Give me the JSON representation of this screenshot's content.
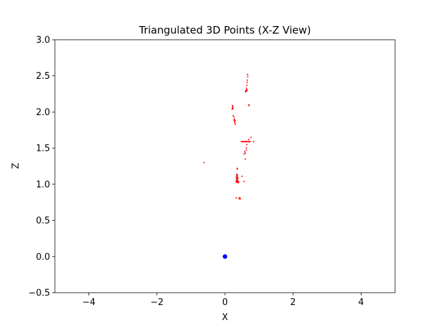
{
  "chart_data": {
    "type": "scatter",
    "title": "Triangulated 3D Points (X-Z View)",
    "xlabel": "X",
    "ylabel": "Z",
    "xlim": [
      -5,
      5
    ],
    "ylim": [
      -0.5,
      3.0
    ],
    "xticks": [
      -4,
      -2,
      0,
      2,
      4
    ],
    "xtick_labels": [
      "−4",
      "−2",
      "0",
      "2",
      "4"
    ],
    "yticks": [
      -0.5,
      0.0,
      0.5,
      1.0,
      1.5,
      2.0,
      2.5,
      3.0
    ],
    "ytick_labels": [
      "−0.5",
      "0.0",
      "0.5",
      "1.0",
      "1.5",
      "2.0",
      "2.5",
      "3.0"
    ],
    "grid": false,
    "series": [
      {
        "color": "#ff0000",
        "marker": "point",
        "points": [
          [
            -0.62,
            1.3
          ],
          [
            0.66,
            2.52
          ],
          [
            0.67,
            2.49
          ],
          [
            0.66,
            2.44
          ],
          [
            0.65,
            2.41
          ],
          [
            0.64,
            2.37
          ],
          [
            0.63,
            2.33
          ],
          [
            0.64,
            2.31
          ],
          [
            0.62,
            2.3
          ],
          [
            0.65,
            2.3
          ],
          [
            0.63,
            2.29
          ],
          [
            0.61,
            2.29
          ],
          [
            0.6,
            2.28
          ],
          [
            0.7,
            2.09
          ],
          [
            0.71,
            2.1
          ],
          [
            0.22,
            2.09
          ],
          [
            0.23,
            2.08
          ],
          [
            0.22,
            2.06
          ],
          [
            0.24,
            2.05
          ],
          [
            0.21,
            2.04
          ],
          [
            0.24,
            1.95
          ],
          [
            0.27,
            1.93
          ],
          [
            0.28,
            1.9
          ],
          [
            0.26,
            1.89
          ],
          [
            0.3,
            1.88
          ],
          [
            0.28,
            1.87
          ],
          [
            0.29,
            1.85
          ],
          [
            0.3,
            1.83
          ],
          [
            0.77,
            1.65
          ],
          [
            0.7,
            1.62
          ],
          [
            0.48,
            1.59
          ],
          [
            0.5,
            1.59
          ],
          [
            0.52,
            1.59
          ],
          [
            0.54,
            1.59
          ],
          [
            0.56,
            1.59
          ],
          [
            0.58,
            1.59
          ],
          [
            0.6,
            1.59
          ],
          [
            0.62,
            1.59
          ],
          [
            0.64,
            1.59
          ],
          [
            0.66,
            1.59
          ],
          [
            0.68,
            1.59
          ],
          [
            0.7,
            1.59
          ],
          [
            0.72,
            1.59
          ],
          [
            0.74,
            1.59
          ],
          [
            0.84,
            1.59
          ],
          [
            0.64,
            1.55
          ],
          [
            0.63,
            1.5
          ],
          [
            0.62,
            1.47
          ],
          [
            0.58,
            1.45
          ],
          [
            0.6,
            1.43
          ],
          [
            0.56,
            1.42
          ],
          [
            0.6,
            1.35
          ],
          [
            0.36,
            1.22
          ],
          [
            0.36,
            1.21
          ],
          [
            0.34,
            1.14
          ],
          [
            0.36,
            1.13
          ],
          [
            0.35,
            1.12
          ],
          [
            0.37,
            1.11
          ],
          [
            0.5,
            1.11
          ],
          [
            0.33,
            1.1
          ],
          [
            0.36,
            1.09
          ],
          [
            0.34,
            1.08
          ],
          [
            0.38,
            1.08
          ],
          [
            0.35,
            1.07
          ],
          [
            0.37,
            1.06
          ],
          [
            0.33,
            1.05
          ],
          [
            0.36,
            1.05
          ],
          [
            0.39,
            1.04
          ],
          [
            0.34,
            1.04
          ],
          [
            0.37,
            1.04
          ],
          [
            0.4,
            1.03
          ],
          [
            0.36,
            1.03
          ],
          [
            0.33,
            1.03
          ],
          [
            0.39,
            1.02
          ],
          [
            0.56,
            1.04
          ],
          [
            0.33,
            0.81
          ],
          [
            0.41,
            0.81
          ],
          [
            0.44,
            0.81
          ],
          [
            0.42,
            0.8
          ],
          [
            0.45,
            0.8
          ]
        ]
      },
      {
        "color": "#0000ff",
        "marker": "circle",
        "points": [
          [
            0.0,
            0.0
          ]
        ]
      }
    ]
  }
}
